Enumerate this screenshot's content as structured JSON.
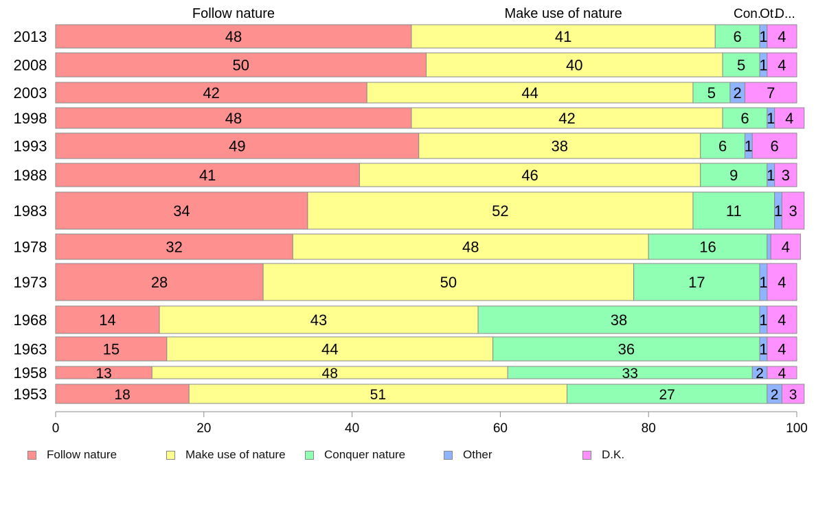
{
  "chart_data": {
    "type": "bar",
    "orientation": "horizontal",
    "stacked": true,
    "categories": [
      "2013",
      "2008",
      "2003",
      "1998",
      "1993",
      "1988",
      "1983",
      "1978",
      "1973",
      "1968",
      "1963",
      "1958",
      "1953"
    ],
    "series": [
      {
        "name": "Follow nature",
        "header": "Follow nature",
        "color": "#ff9090",
        "values": [
          48,
          50,
          42,
          48,
          49,
          41,
          34,
          32,
          28,
          14,
          15,
          13,
          18
        ]
      },
      {
        "name": "Make use of nature",
        "header": "Make use of nature",
        "color": "#ffff90",
        "values": [
          41,
          40,
          44,
          42,
          38,
          46,
          52,
          48,
          50,
          43,
          44,
          48,
          51
        ]
      },
      {
        "name": "Conquer nature",
        "header": "Con.",
        "color": "#90ffb4",
        "values": [
          6,
          5,
          5,
          6,
          6,
          9,
          11,
          16,
          17,
          38,
          36,
          33,
          27
        ]
      },
      {
        "name": "Other",
        "header": "Ot.",
        "color": "#90b4ff",
        "values": [
          1,
          1,
          2,
          1,
          1,
          1,
          1,
          0.5,
          1,
          1,
          1,
          2,
          2
        ]
      },
      {
        "name": "D.K.",
        "header": "D...",
        "color": "#ff90ff",
        "values": [
          4,
          4,
          7,
          4,
          6,
          3,
          3,
          4,
          4,
          4,
          4,
          4,
          3
        ]
      }
    ],
    "data_labels": [
      [
        "48",
        "41",
        "6",
        "1",
        "4"
      ],
      [
        "50",
        "40",
        "5",
        "1",
        "4"
      ],
      [
        "42",
        "44",
        "5",
        "2",
        "7"
      ],
      [
        "48",
        "42",
        "6",
        "1",
        "4"
      ],
      [
        "49",
        "38",
        "6",
        "1",
        "6"
      ],
      [
        "41",
        "46",
        "9",
        "1",
        "3"
      ],
      [
        "34",
        "52",
        "11",
        "1",
        "3"
      ],
      [
        "32",
        "48",
        "16",
        "",
        "4"
      ],
      [
        "28",
        "50",
        "17",
        "1",
        "4"
      ],
      [
        "14",
        "43",
        "38",
        "1",
        "4"
      ],
      [
        "15",
        "44",
        "36",
        "1",
        "4"
      ],
      [
        "13",
        "48",
        "33",
        "2",
        "4"
      ],
      [
        "18",
        "51",
        "27",
        "2",
        "3"
      ]
    ],
    "xlim": [
      0,
      100
    ],
    "x_ticks": [
      "0",
      "20",
      "40",
      "60",
      "80",
      "100"
    ],
    "xlabel": "",
    "ylabel": "",
    "title": "",
    "grid": false,
    "legend_position": "bottom"
  }
}
